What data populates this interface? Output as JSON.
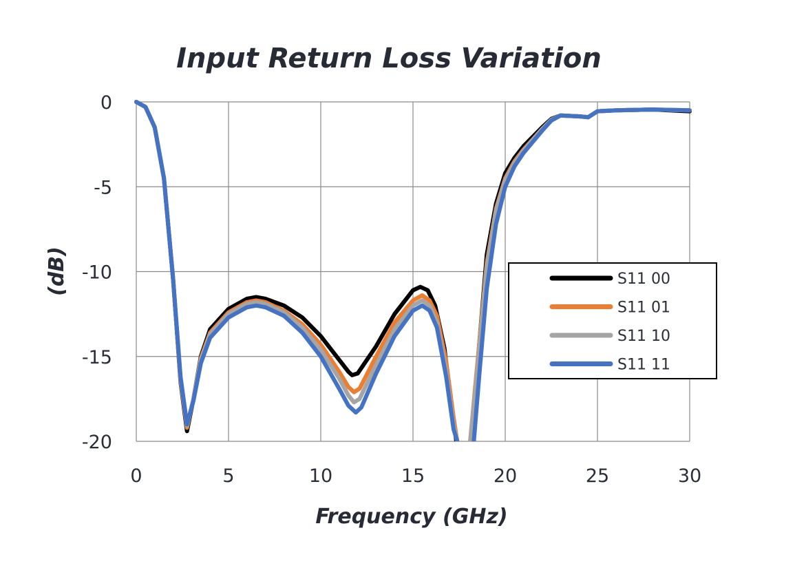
{
  "chart_data": {
    "type": "line",
    "title": "Input Return Loss Variation",
    "xlabel": "Frequency (GHz)",
    "ylabel": "(dB)",
    "xlim": [
      0,
      30
    ],
    "ylim": [
      -20,
      0
    ],
    "x_ticks": [
      "0",
      "5",
      "10",
      "15",
      "20",
      "25",
      "30"
    ],
    "y_ticks": [
      "0",
      "-5",
      "-10",
      "-15",
      "-20"
    ],
    "grid": true,
    "legend_position": "right",
    "series": [
      {
        "name": "S11 00",
        "color": "#000000",
        "points": [
          [
            0,
            0
          ],
          [
            0.5,
            -0.3
          ],
          [
            1.0,
            -1.5
          ],
          [
            1.5,
            -4.5
          ],
          [
            2.0,
            -10.5
          ],
          [
            2.4,
            -16.5
          ],
          [
            2.75,
            -19.4
          ],
          [
            3.1,
            -17.5
          ],
          [
            3.5,
            -15.0
          ],
          [
            4.0,
            -13.4
          ],
          [
            5.0,
            -12.2
          ],
          [
            6.0,
            -11.6
          ],
          [
            6.5,
            -11.5
          ],
          [
            7.0,
            -11.6
          ],
          [
            8.0,
            -12.0
          ],
          [
            9.0,
            -12.7
          ],
          [
            10.0,
            -13.8
          ],
          [
            11.0,
            -15.2
          ],
          [
            11.5,
            -15.9
          ],
          [
            11.7,
            -16.1
          ],
          [
            12.0,
            -16.0
          ],
          [
            13.0,
            -14.4
          ],
          [
            14.0,
            -12.5
          ],
          [
            15.0,
            -11.1
          ],
          [
            15.4,
            -10.9
          ],
          [
            15.8,
            -11.1
          ],
          [
            16.2,
            -12.0
          ],
          [
            16.7,
            -14.5
          ],
          [
            17.1,
            -18.0
          ],
          [
            17.35,
            -20.0
          ]
        ],
        "points_b": [
          [
            18.2,
            -20.0
          ],
          [
            18.5,
            -15.5
          ],
          [
            19.0,
            -9.0
          ],
          [
            19.5,
            -6.0
          ],
          [
            20.0,
            -4.2
          ],
          [
            20.5,
            -3.3
          ],
          [
            21.0,
            -2.6
          ],
          [
            22.0,
            -1.5
          ],
          [
            22.5,
            -1.0
          ],
          [
            23.0,
            -0.8
          ],
          [
            24.0,
            -0.85
          ],
          [
            24.5,
            -0.9
          ],
          [
            25.0,
            -0.55
          ],
          [
            26.0,
            -0.5
          ],
          [
            28.0,
            -0.45
          ],
          [
            30.0,
            -0.55
          ]
        ]
      },
      {
        "name": "S11 01",
        "color": "#ed7d31",
        "points": [
          [
            0,
            0
          ],
          [
            0.5,
            -0.3
          ],
          [
            1.0,
            -1.5
          ],
          [
            1.5,
            -4.5
          ],
          [
            2.0,
            -10.5
          ],
          [
            2.4,
            -16.4
          ],
          [
            2.75,
            -19.2
          ],
          [
            3.1,
            -17.5
          ],
          [
            3.5,
            -15.1
          ],
          [
            4.0,
            -13.6
          ],
          [
            5.0,
            -12.4
          ],
          [
            6.0,
            -11.8
          ],
          [
            6.5,
            -11.7
          ],
          [
            7.0,
            -11.8
          ],
          [
            8.0,
            -12.3
          ],
          [
            9.0,
            -13.1
          ],
          [
            10.0,
            -14.3
          ],
          [
            11.0,
            -15.9
          ],
          [
            11.5,
            -16.8
          ],
          [
            11.8,
            -17.1
          ],
          [
            12.1,
            -16.9
          ],
          [
            13.0,
            -15.0
          ],
          [
            14.0,
            -13.0
          ],
          [
            15.0,
            -11.7
          ],
          [
            15.5,
            -11.4
          ],
          [
            15.9,
            -11.7
          ],
          [
            16.3,
            -12.6
          ],
          [
            16.8,
            -15.3
          ],
          [
            17.2,
            -18.6
          ],
          [
            17.4,
            -20.0
          ]
        ],
        "points_b": [
          [
            18.1,
            -20.0
          ],
          [
            18.4,
            -16.5
          ],
          [
            19.0,
            -9.5
          ],
          [
            19.5,
            -6.3
          ],
          [
            20.0,
            -4.5
          ],
          [
            20.5,
            -3.5
          ],
          [
            21.0,
            -2.8
          ],
          [
            22.0,
            -1.6
          ],
          [
            22.5,
            -1.05
          ],
          [
            23.0,
            -0.8
          ],
          [
            24.0,
            -0.85
          ],
          [
            24.5,
            -0.9
          ],
          [
            25.0,
            -0.55
          ],
          [
            26.0,
            -0.5
          ],
          [
            28.0,
            -0.45
          ],
          [
            30.0,
            -0.5
          ]
        ]
      },
      {
        "name": "S11 10",
        "color": "#a5a5a5",
        "points": [
          [
            0,
            0
          ],
          [
            0.5,
            -0.3
          ],
          [
            1.0,
            -1.5
          ],
          [
            1.5,
            -4.5
          ],
          [
            2.0,
            -10.5
          ],
          [
            2.4,
            -16.3
          ],
          [
            2.75,
            -19.1
          ],
          [
            3.1,
            -17.5
          ],
          [
            3.5,
            -15.2
          ],
          [
            4.0,
            -13.7
          ],
          [
            5.0,
            -12.5
          ],
          [
            6.0,
            -11.9
          ],
          [
            6.5,
            -11.8
          ],
          [
            7.0,
            -11.9
          ],
          [
            8.0,
            -12.4
          ],
          [
            9.0,
            -13.3
          ],
          [
            10.0,
            -14.6
          ],
          [
            11.0,
            -16.3
          ],
          [
            11.5,
            -17.3
          ],
          [
            11.8,
            -17.7
          ],
          [
            12.1,
            -17.5
          ],
          [
            13.0,
            -15.5
          ],
          [
            14.0,
            -13.4
          ],
          [
            15.0,
            -12.0
          ],
          [
            15.5,
            -11.7
          ],
          [
            15.9,
            -12.0
          ],
          [
            16.3,
            -13.0
          ],
          [
            16.8,
            -15.8
          ],
          [
            17.2,
            -19.0
          ],
          [
            17.4,
            -20.0
          ]
        ],
        "points_b": [
          [
            18.1,
            -20.0
          ],
          [
            18.4,
            -16.8
          ],
          [
            19.0,
            -9.7
          ],
          [
            19.5,
            -6.4
          ],
          [
            20.0,
            -4.6
          ],
          [
            20.5,
            -3.6
          ],
          [
            21.0,
            -2.85
          ],
          [
            22.0,
            -1.6
          ],
          [
            22.5,
            -1.05
          ],
          [
            23.0,
            -0.8
          ],
          [
            24.0,
            -0.85
          ],
          [
            24.5,
            -0.9
          ],
          [
            25.0,
            -0.55
          ],
          [
            26.0,
            -0.5
          ],
          [
            28.0,
            -0.45
          ],
          [
            30.0,
            -0.5
          ]
        ]
      },
      {
        "name": "S11 11",
        "color": "#4472c4",
        "points": [
          [
            0,
            0
          ],
          [
            0.5,
            -0.3
          ],
          [
            1.0,
            -1.5
          ],
          [
            1.5,
            -4.5
          ],
          [
            2.0,
            -10.5
          ],
          [
            2.4,
            -16.2
          ],
          [
            2.75,
            -19.0
          ],
          [
            3.1,
            -17.6
          ],
          [
            3.5,
            -15.4
          ],
          [
            4.0,
            -13.9
          ],
          [
            5.0,
            -12.7
          ],
          [
            6.0,
            -12.1
          ],
          [
            6.5,
            -12.0
          ],
          [
            7.0,
            -12.1
          ],
          [
            8.0,
            -12.6
          ],
          [
            9.0,
            -13.6
          ],
          [
            10.0,
            -15.0
          ],
          [
            11.0,
            -16.9
          ],
          [
            11.5,
            -17.9
          ],
          [
            11.9,
            -18.3
          ],
          [
            12.2,
            -18.0
          ],
          [
            13.0,
            -16.0
          ],
          [
            14.0,
            -13.8
          ],
          [
            15.0,
            -12.3
          ],
          [
            15.5,
            -12.0
          ],
          [
            15.9,
            -12.3
          ],
          [
            16.3,
            -13.3
          ],
          [
            16.8,
            -16.2
          ],
          [
            17.2,
            -19.3
          ],
          [
            17.4,
            -20.0
          ]
        ],
        "points_b": [
          [
            18.3,
            -20.0
          ],
          [
            18.6,
            -16.0
          ],
          [
            19.0,
            -11.0
          ],
          [
            19.5,
            -7.2
          ],
          [
            20.0,
            -5.0
          ],
          [
            20.5,
            -3.8
          ],
          [
            21.0,
            -3.0
          ],
          [
            22.0,
            -1.7
          ],
          [
            22.5,
            -1.1
          ],
          [
            23.0,
            -0.8
          ],
          [
            24.0,
            -0.85
          ],
          [
            24.5,
            -0.9
          ],
          [
            25.0,
            -0.55
          ],
          [
            26.0,
            -0.5
          ],
          [
            28.0,
            -0.45
          ],
          [
            30.0,
            -0.5
          ]
        ]
      }
    ]
  }
}
